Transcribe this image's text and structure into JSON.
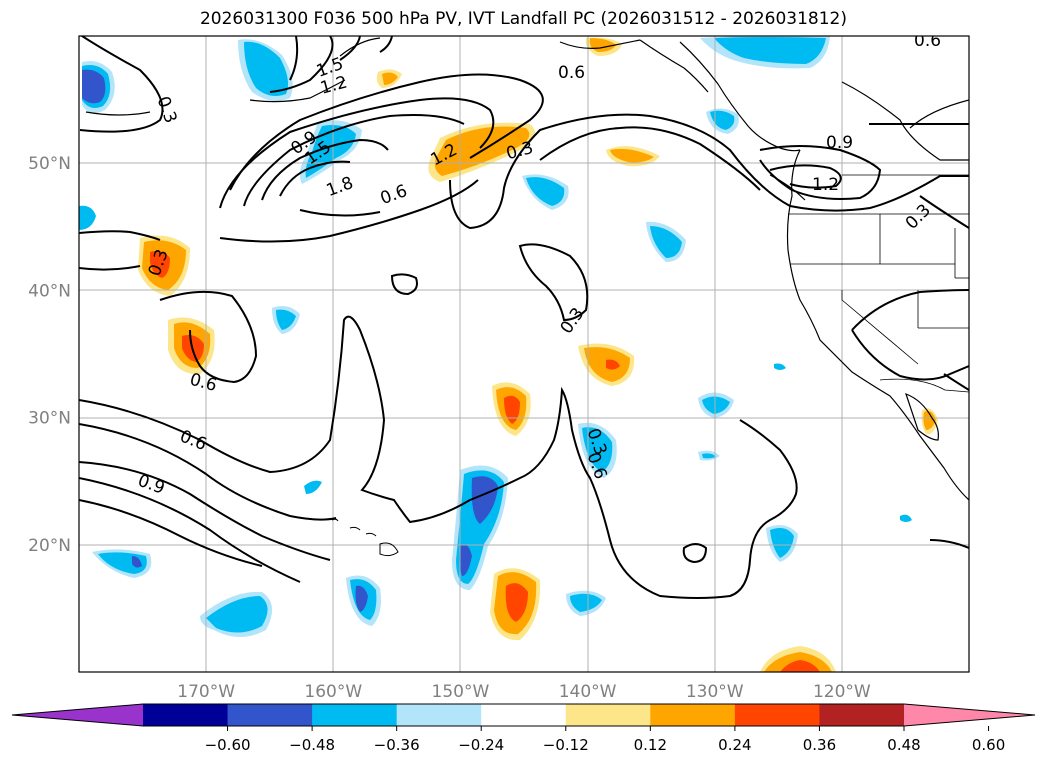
{
  "title": "2026031300 F036 500 hPa PV, IVT Landfall PC (2026031512 - 2026031812)",
  "map": {
    "lon_range": [
      -180,
      -110
    ],
    "lat_range": [
      10,
      60
    ],
    "lat_labels": [
      {
        "text": "50°N",
        "lat": 50
      },
      {
        "text": "40°N",
        "lat": 40
      },
      {
        "text": "30°N",
        "lat": 30
      },
      {
        "text": "20°N",
        "lat": 20
      }
    ],
    "lon_labels": [
      {
        "text": "170°W",
        "lon": -170
      },
      {
        "text": "160°W",
        "lon": -160
      },
      {
        "text": "150°W",
        "lon": -150
      },
      {
        "text": "140°W",
        "lon": -140
      },
      {
        "text": "130°W",
        "lon": -130
      },
      {
        "text": "120°W",
        "lon": -120
      }
    ],
    "grid": true,
    "contour_labels": [
      "1.5",
      "1.2",
      "0.3",
      "0.9",
      "1.5",
      "1.8",
      "0.6",
      "1.2",
      "0.3",
      "0.6",
      "0.9",
      "1.2",
      "0.3",
      "0.6",
      "0.3",
      "0.3",
      "0.6",
      "0.6",
      "0.9",
      "0.3",
      "0.6"
    ]
  },
  "colorbar": {
    "colors": [
      "#9933cc",
      "#000099",
      "#3355cc",
      "#00bbf2",
      "#b2e4fa",
      "#ffffff",
      "#fde68a",
      "#ffa500",
      "#ff4500",
      "#b22222",
      "#ff88aa"
    ],
    "tick_labels": [
      "-0.60",
      "-0.48",
      "-0.36",
      "-0.24",
      "-0.12",
      "0.12",
      "0.24",
      "0.36",
      "0.48",
      "0.60"
    ],
    "extend": "both"
  }
}
